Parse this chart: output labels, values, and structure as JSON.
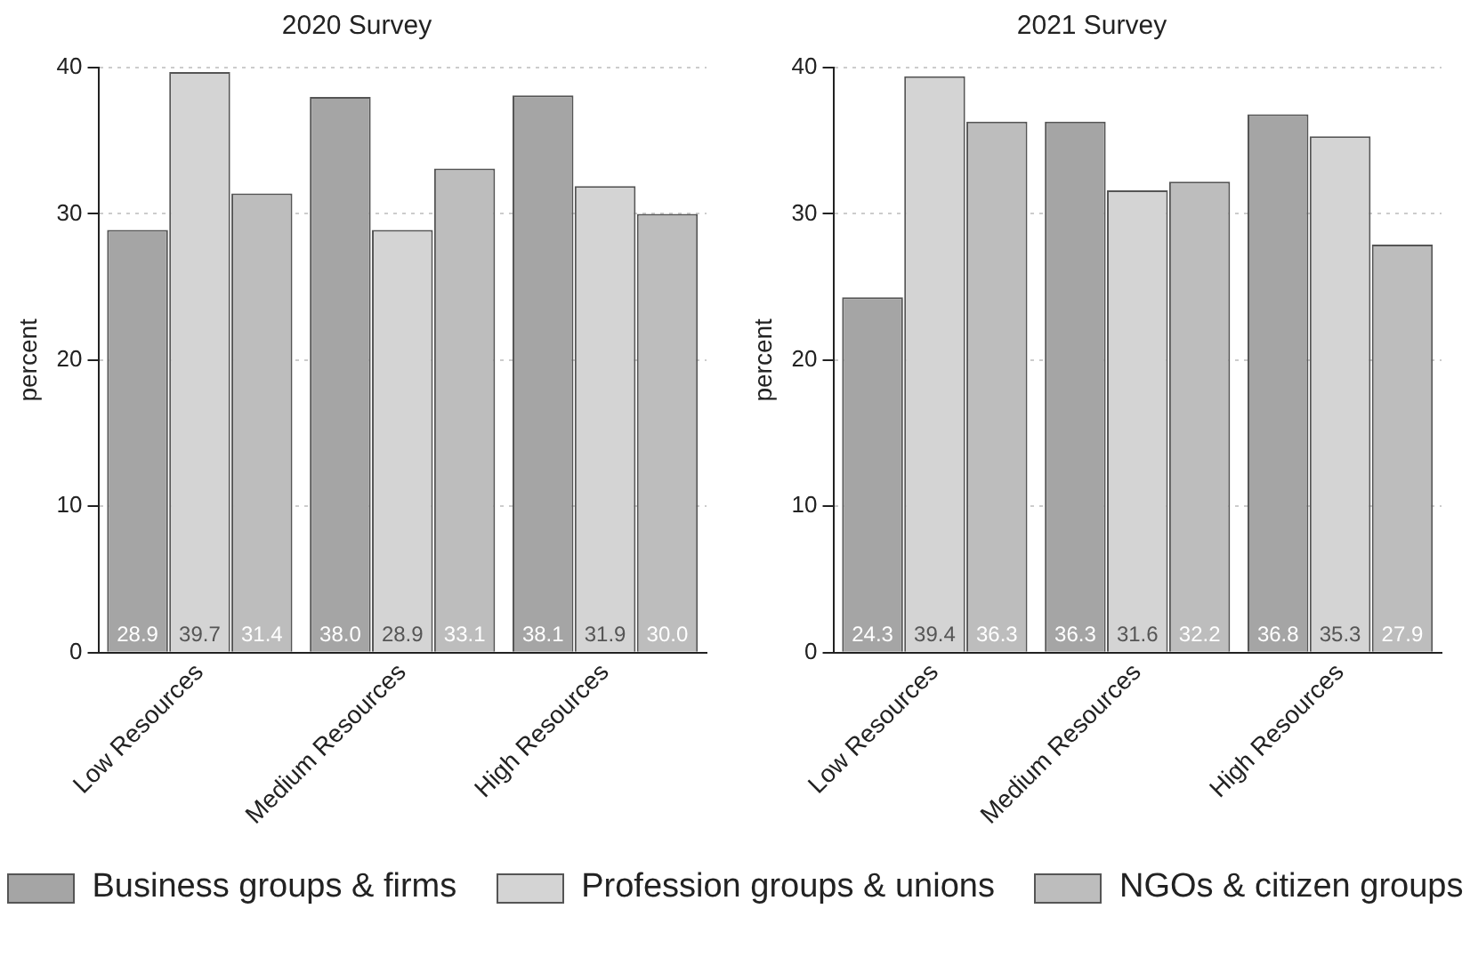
{
  "chart_data": [
    {
      "type": "bar",
      "title": "2020 Survey",
      "ylabel": "percent",
      "categories": [
        "Low Resources",
        "Medium Resources",
        "High Resources"
      ],
      "ylim": [
        0,
        40
      ],
      "yticks": [
        0,
        10,
        20,
        30,
        40
      ],
      "grid": "y",
      "legend": "bottom",
      "series": [
        {
          "name": "Business groups & firms",
          "color": "#a5a5a5",
          "values": [
            28.9,
            38.0,
            38.1
          ],
          "value_labels": [
            "28.9",
            "38.0",
            "38.1"
          ]
        },
        {
          "name": "Profession groups & unions",
          "color": "#d4d4d4",
          "values": [
            39.7,
            28.9,
            31.9
          ],
          "value_labels": [
            "39.7",
            "28.9",
            "31.9"
          ]
        },
        {
          "name": "NGOs & citizen groups",
          "color": "#bdbdbd",
          "values": [
            31.4,
            33.1,
            30.0
          ],
          "value_labels": [
            "31.4",
            "33.1",
            "30.0"
          ]
        }
      ]
    },
    {
      "type": "bar",
      "title": "2021 Survey",
      "ylabel": "percent",
      "categories": [
        "Low Resources",
        "Medium Resources",
        "High Resources"
      ],
      "ylim": [
        0,
        40
      ],
      "yticks": [
        0,
        10,
        20,
        30,
        40
      ],
      "grid": "y",
      "series": [
        {
          "color": "#a5a5a5",
          "values": [
            24.3,
            36.3,
            36.8
          ],
          "value_labels": [
            "24.3",
            "36.3",
            "36.8"
          ]
        },
        {
          "color": "#d4d4d4",
          "values": [
            39.4,
            31.6,
            35.3
          ],
          "value_labels": [
            "39.4",
            "31.6",
            "35.3"
          ]
        },
        {
          "color": "#bdbdbd",
          "values": [
            36.3,
            32.2,
            27.9
          ],
          "value_labels": [
            "36.3",
            "32.2",
            "27.9"
          ]
        }
      ]
    }
  ]
}
